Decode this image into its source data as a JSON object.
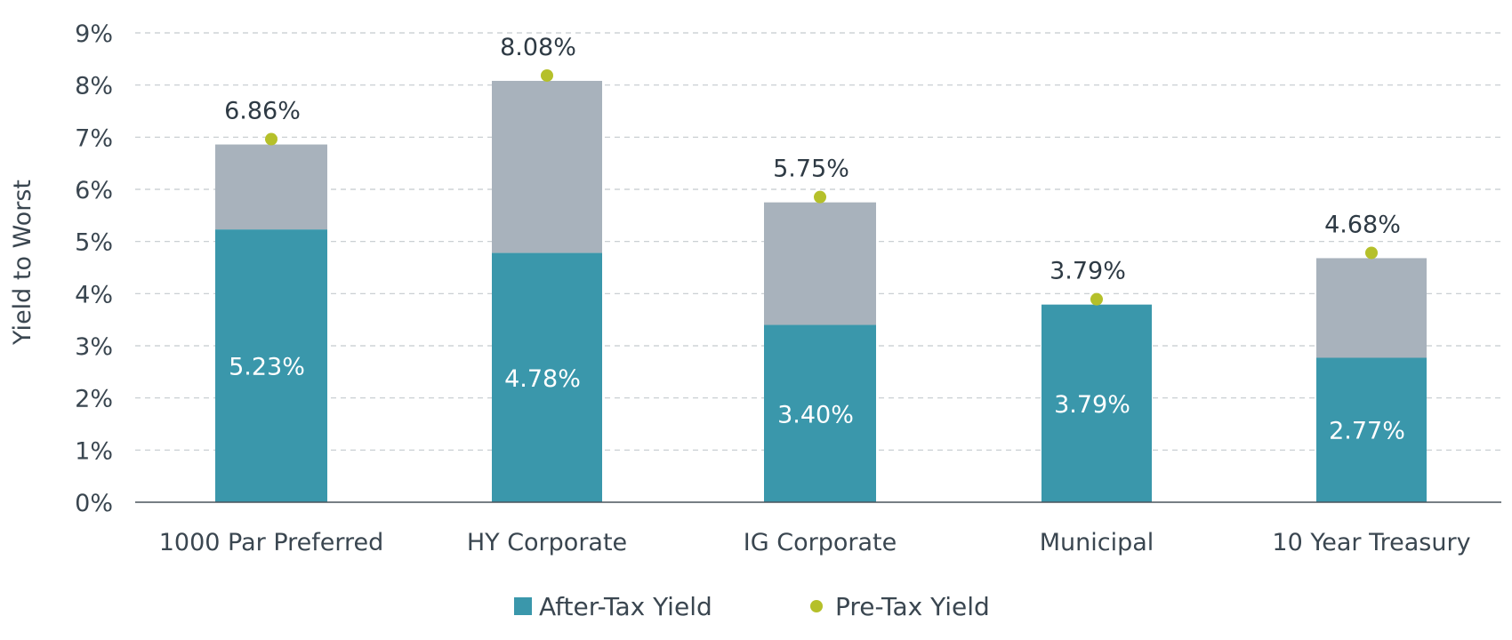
{
  "chart_data": {
    "type": "bar",
    "stacked": true,
    "ylabel": "Yield to Worst",
    "ylim": [
      0,
      9
    ],
    "y_ticks": [
      "0%",
      "1%",
      "2%",
      "3%",
      "4%",
      "5%",
      "6%",
      "7%",
      "8%",
      "9%"
    ],
    "grid": true,
    "categories": [
      "1000 Par Preferred",
      "HY Corporate",
      "IG Corporate",
      "Municipal",
      "10 Year Treasury"
    ],
    "series": [
      {
        "name": "After-Tax Yield",
        "type": "bar",
        "values": [
          5.23,
          4.78,
          3.4,
          3.79,
          2.77
        ],
        "labels": [
          "5.23%",
          "4.78%",
          "3.40%",
          "3.79%",
          "2.77%"
        ],
        "color": "#3a97ab"
      },
      {
        "name": "Pre-Tax Yield",
        "type": "scatter",
        "values": [
          6.86,
          8.08,
          5.75,
          3.79,
          4.68
        ],
        "labels": [
          "6.86%",
          "8.08%",
          "5.75%",
          "3.79%",
          "4.68%"
        ],
        "color": "#b5c02a"
      }
    ],
    "bar_top_color": "#a8b2bc",
    "legend": {
      "position": "bottom-center"
    }
  }
}
